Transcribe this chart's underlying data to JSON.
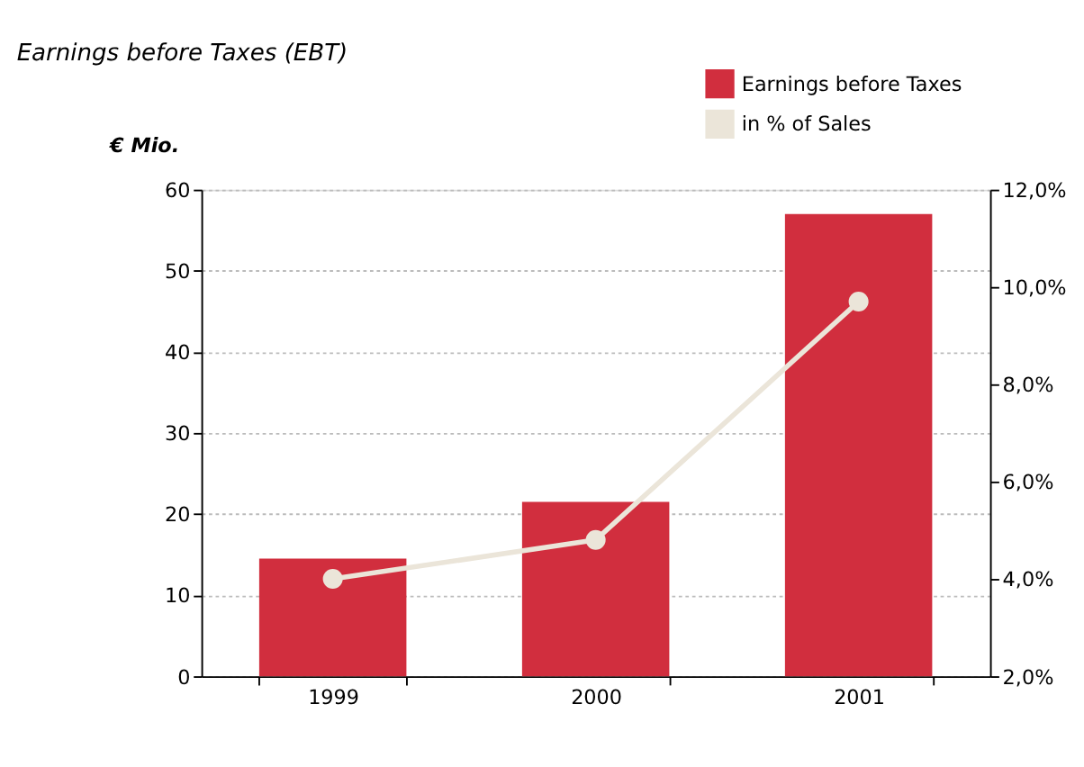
{
  "chart_data": {
    "type": "bar",
    "title": "Earnings before Taxes (EBT)",
    "ylabel": "€ Mio.",
    "categories": [
      "1999",
      "2000",
      "2001"
    ],
    "series": [
      {
        "name": "Earnings before Taxes",
        "color": "#d12e3e",
        "values": [
          14.5,
          21.5,
          57
        ]
      },
      {
        "name": "in % of Sales",
        "type": "line",
        "axis": "y2",
        "color": "#ebe5d9",
        "values": [
          4.0,
          4.8,
          9.7
        ]
      }
    ],
    "ylim": [
      0,
      60
    ],
    "yticks": [
      0,
      10,
      20,
      30,
      40,
      50,
      60
    ],
    "y2lim": [
      2,
      12
    ],
    "y2ticks": [
      {
        "value": 2,
        "label": "2,0%"
      },
      {
        "value": 4,
        "label": "4,0%"
      },
      {
        "value": 6,
        "label": "6,0%"
      },
      {
        "value": 8,
        "label": "8,0%"
      },
      {
        "value": 10,
        "label": "10,0%"
      },
      {
        "value": 12,
        "label": "12,0%"
      }
    ],
    "grid": "y",
    "legend": "top right",
    "marker": "circle",
    "line_style": "solid"
  }
}
